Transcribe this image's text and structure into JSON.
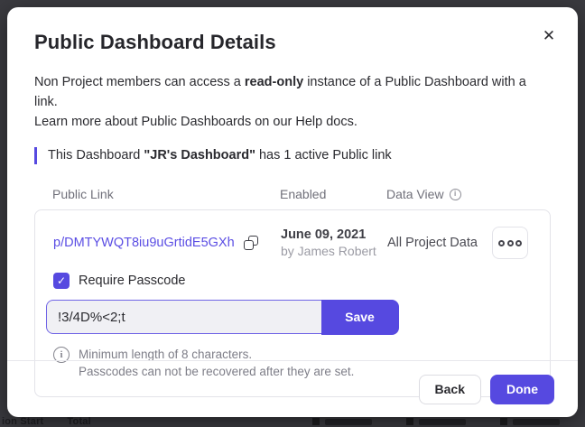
{
  "modal": {
    "title": "Public Dashboard Details",
    "close_icon": "✕",
    "intro": {
      "line1_pre": "Non Project members can access a ",
      "line1_bold": "read-only",
      "line1_post": " instance of a Public Dashboard with a link.",
      "line2": "Learn more about Public Dashboards on our Help docs."
    },
    "callout": {
      "pre": "This Dashboard ",
      "bold": "\"JR's Dashboard\"",
      "post": " has 1 active Public link"
    },
    "table": {
      "headers": [
        "Public Link",
        "Enabled",
        "Data View"
      ],
      "data_view_info_icon": "i",
      "row": {
        "link": "p/DMTYWQT8iu9uGrtidE5GXh",
        "enabled_date": "June 09, 2021",
        "enabled_by": "by James Robert",
        "data_view": "All Project Data"
      }
    },
    "passcode": {
      "checkbox_label": "Require Passcode",
      "checkbox_checked": true,
      "checkmark": "✓",
      "input_value": "!3/4D%<2;t",
      "save_label": "Save",
      "note_icon": "i",
      "note_line1": "Minimum length of 8 characters.",
      "note_line2": "Passcodes can not be recovered after they are set."
    },
    "footer": {
      "back_label": "Back",
      "done_label": "Done"
    }
  },
  "backdrop": {
    "left_label_1": "ion Start",
    "left_label_2": "Total"
  },
  "colors": {
    "accent_purple": "#5649e0",
    "link_purple": "#5b4ee4",
    "backdrop": "#3a3a3f",
    "card_border": "#e3e3e9",
    "secondary_text": "#9b9ba4",
    "note_text": "#7e7e88",
    "input_background": "#f0f0f4",
    "input_border": "#7165e6"
  }
}
